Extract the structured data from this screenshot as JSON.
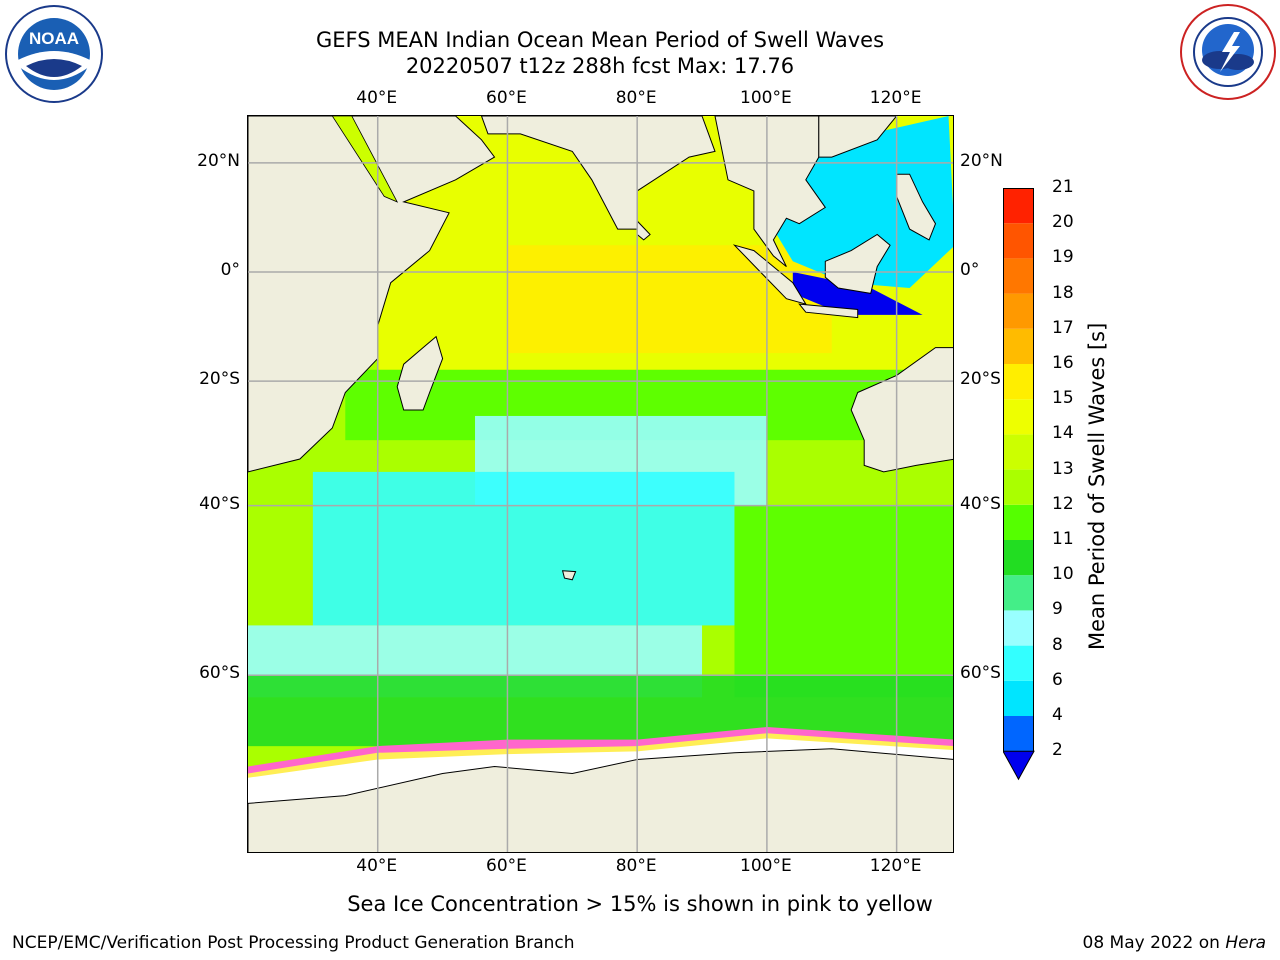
{
  "title_line1": "GEFS MEAN Indian Ocean Mean Period of Swell Waves",
  "title_line2": "20220507 t12z 288h fcst   Max: 17.76",
  "logos": {
    "left": {
      "name": "NOAA",
      "text": "NOAA",
      "ring_text": "NATIONAL OCEANIC AND ATMOSPHERIC ADMINISTRATION · U.S. DEPARTMENT OF COMMERCE"
    },
    "right": {
      "name": "National Weather Service",
      "ring_text": "NATIONAL WEATHER SERVICE"
    }
  },
  "map": {
    "lon_ticks": [
      "40°E",
      "60°E",
      "80°E",
      "100°E",
      "120°E"
    ],
    "lat_ticks": [
      "20°N",
      "0°",
      "20°S",
      "40°S",
      "60°S"
    ],
    "lon_range": [
      20,
      129
    ],
    "lat_range": [
      -73,
      28
    ],
    "grid": true
  },
  "colorbar": {
    "title": "Mean Period of Swell Waves [s]",
    "levels": [
      "2",
      "4",
      "6",
      "8",
      "9",
      "10",
      "11",
      "12",
      "13",
      "14",
      "15",
      "16",
      "17",
      "18",
      "19",
      "20",
      "21"
    ],
    "colors": [
      "#0066ff",
      "#00e5ff",
      "#33ffff",
      "#99ffff",
      "#44ee88",
      "#22dd22",
      "#55ff00",
      "#aaff00",
      "#ccff00",
      "#eeff00",
      "#ffee00",
      "#ffbb00",
      "#ff9900",
      "#ff7700",
      "#ff5500",
      "#ff2200"
    ],
    "under_color": "#0000ee"
  },
  "note": "Sea Ice Concentration > 15% is shown in pink to yellow",
  "footer": {
    "left": "NCEP/EMC/Verification Post Processing Product Generation Branch",
    "right_date": "08 May 2022 on",
    "right_host": "Hera"
  },
  "colors": {
    "land": "#efeedd",
    "ice_land": "#ffffff",
    "grid": "#aaaaaa"
  }
}
